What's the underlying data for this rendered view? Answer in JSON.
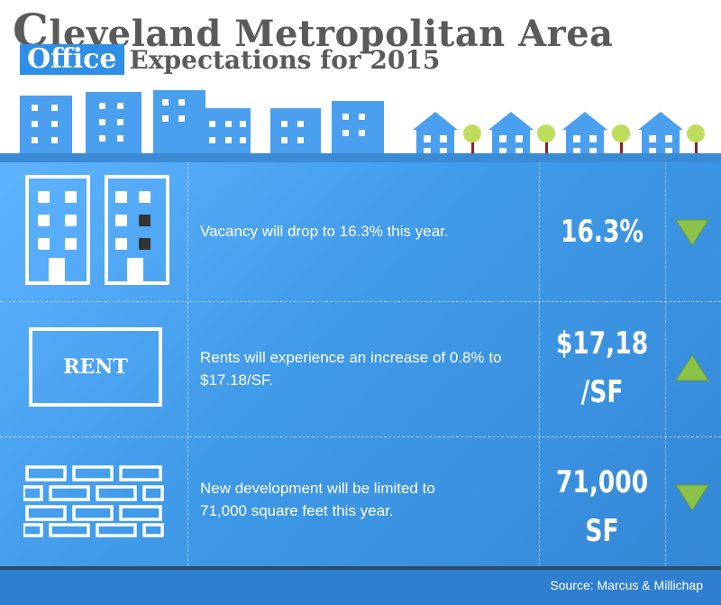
{
  "title": {
    "first_letter": "C",
    "line1_rest": "leveland Metropolitan Area",
    "highlight": "Office",
    "line2_rest": "Expectations for 2015"
  },
  "rows": [
    {
      "description": "Vacancy will drop to 16.3% this year.",
      "value": "16.3%",
      "trend": "down",
      "icon": "office-buildings-icon"
    },
    {
      "description": "Rents will experience an increase of 0.8% to $17.18/SF.",
      "value_line1": "$17,18",
      "value_line2": "/SF",
      "icon_label": "RENT",
      "trend": "up",
      "icon": "rent-sign-icon"
    },
    {
      "description_line1": "New development will be limited to",
      "description_line2": "71,000 square feet this year.",
      "value_line1": "71,000",
      "value_line2": "SF",
      "trend": "down",
      "icon": "brick-wall-icon"
    }
  ],
  "source": "Source: Marcus & Millichap",
  "colors": {
    "accent": "#2f8ee6",
    "panel": "#4aa3f2",
    "trend_marker": "#8bc34a",
    "title_text": "#5a5a5a"
  }
}
